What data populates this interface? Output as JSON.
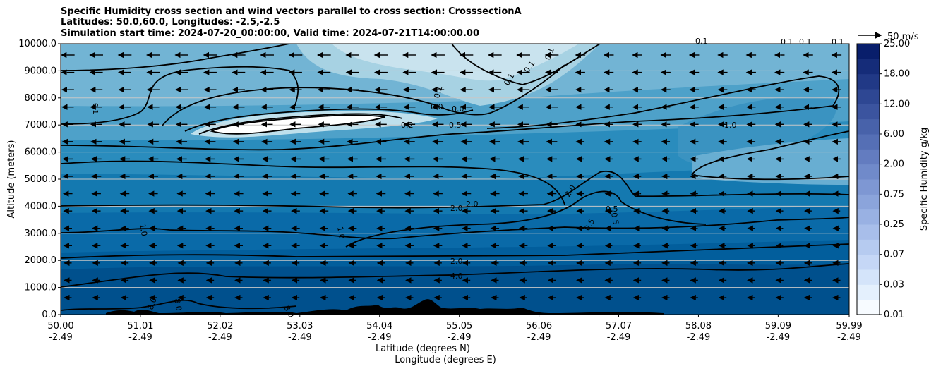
{
  "chart_data": {
    "type": "contourf",
    "title_lines": [
      "Specific Humidity cross section and wind vectors parallel to cross section: CrosssectionA",
      "Latitudes: 50.0,60.0, Longitudes: -2.5,-2.5",
      "Simulation start time: 2024-07-20_00:00:00, Valid time: 2024-07-21T14:00:00.00"
    ],
    "ylabel": "Altitude (meters)",
    "xlabel_lines": [
      "Latitude (degrees N)",
      "Longitude (degrees E)"
    ],
    "y_ticks": [
      "0.0",
      "1000.0",
      "2000.0",
      "3000.0",
      "4000.0",
      "5000.0",
      "6000.0",
      "7000.0",
      "8000.0",
      "9000.0",
      "10000.0"
    ],
    "ylim": [
      0,
      10000
    ],
    "x_ticks": [
      {
        "lat": "50.00",
        "lon": "-2.49"
      },
      {
        "lat": "51.01",
        "lon": "-2.49"
      },
      {
        "lat": "52.02",
        "lon": "-2.49"
      },
      {
        "lat": "53.03",
        "lon": "-2.49"
      },
      {
        "lat": "54.04",
        "lon": "-2.49"
      },
      {
        "lat": "55.05",
        "lon": "-2.49"
      },
      {
        "lat": "56.06",
        "lon": "-2.49"
      },
      {
        "lat": "57.07",
        "lon": "-2.49"
      },
      {
        "lat": "58.08",
        "lon": "-2.49"
      },
      {
        "lat": "59.09",
        "lon": "-2.49"
      },
      {
        "lat": "59.99",
        "lon": "-2.49"
      }
    ],
    "xlim": [
      50.0,
      59.99
    ],
    "grid": "horizontal",
    "colorbar": {
      "label": "Specific Humidity g/kg",
      "tick_labels": [
        "0.01",
        "0.03",
        "0.07",
        "0.25",
        "0.75",
        "2.00",
        "6.00",
        "12.00",
        "18.00",
        "25.00"
      ],
      "colormap": "Blues"
    },
    "quiver_key": {
      "label": "50 m/s"
    },
    "contour_labels": [
      "0.1",
      "0.1",
      "0.1",
      "0.1",
      "0.1",
      "0.1",
      "0.1",
      "0.1",
      "0.0",
      "0.0",
      "0.2",
      "0.5",
      "1.0",
      "1.0",
      "1.0",
      "2.0",
      "2.0",
      "2.0",
      "2.0",
      "0.5",
      "0.5",
      "0.5",
      "4.0",
      "8.0",
      "8.0",
      "8.0"
    ],
    "colors": {
      "terrain": "#000000",
      "contour": "#000000",
      "grid": "#c8c8c8"
    }
  }
}
